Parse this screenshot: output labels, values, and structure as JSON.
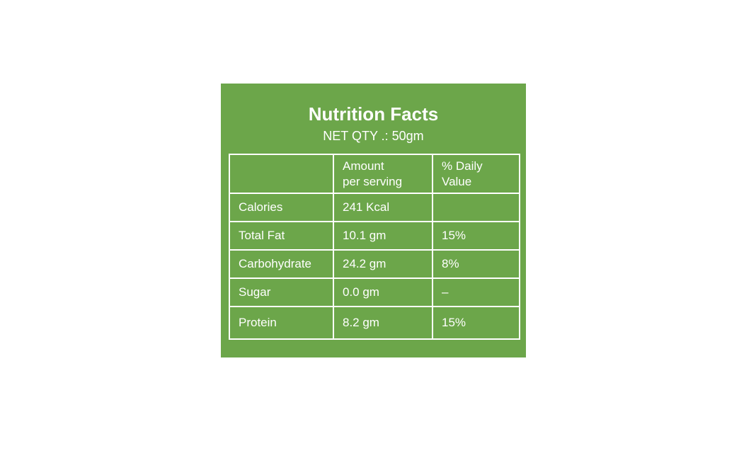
{
  "label": {
    "title": "Nutrition Facts",
    "net_qty": "NET QTY .: 50gm",
    "bg_color": "#6CA64A",
    "text_color": "#FFFFFF"
  },
  "table": {
    "headers": [
      "",
      "Amount\nper serving",
      "% Daily\nValue"
    ],
    "rows": [
      {
        "label": "Calories",
        "amount": "241 Kcal",
        "daily_value": ""
      },
      {
        "label": "Total Fat",
        "amount": "10.1 gm",
        "daily_value": "15%"
      },
      {
        "label": "Carbohydrate",
        "amount": "24.2 gm",
        "daily_value": "8%"
      },
      {
        "label": "Sugar",
        "amount": "0.0 gm",
        "daily_value": "–"
      },
      {
        "label": "Protein",
        "amount": "8.2 gm",
        "daily_value": "15%"
      }
    ]
  }
}
